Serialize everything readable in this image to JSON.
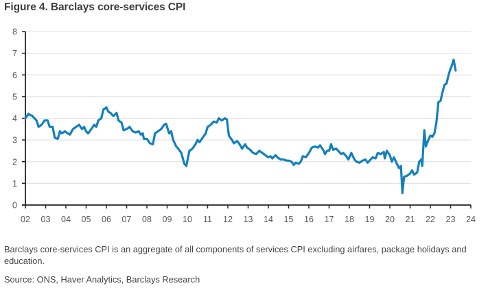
{
  "figure": {
    "title": "Figure 4. Barclays core-services CPI",
    "caption": "Barclays core-services CPI is an aggregate of all components of services CPI excluding airfares, package holidays and education.",
    "source": "Source: ONS, Haver Analytics, Barclays Research",
    "line_color": "#1380bd",
    "grid_color": "#e3e3e3",
    "axis_color": "#222222"
  },
  "chart_data": {
    "type": "line",
    "title": "Barclays core-services CPI",
    "xlabel": "",
    "ylabel": "",
    "xlim": [
      2002,
      2024
    ],
    "ylim": [
      0,
      8
    ],
    "grid": "horizontal",
    "legend": "none",
    "x_ticks": [
      2002,
      2003,
      2004,
      2005,
      2006,
      2007,
      2008,
      2009,
      2010,
      2011,
      2012,
      2013,
      2014,
      2015,
      2016,
      2017,
      2018,
      2019,
      2020,
      2021,
      2022,
      2023,
      2024
    ],
    "x_tick_labels": [
      "02",
      "03",
      "04",
      "05",
      "06",
      "07",
      "08",
      "09",
      "10",
      "11",
      "12",
      "13",
      "14",
      "15",
      "16",
      "17",
      "18",
      "19",
      "20",
      "21",
      "22",
      "23",
      "24"
    ],
    "y_ticks": [
      0,
      1,
      2,
      3,
      4,
      5,
      6,
      7,
      8
    ],
    "y_tick_labels": [
      "0",
      "1",
      "2",
      "3",
      "4",
      "5",
      "6",
      "7",
      "8"
    ],
    "series": [
      {
        "name": "Barclays core-services CPI",
        "x": [
          2002.0,
          2002.15,
          2002.35,
          2002.55,
          2002.65,
          2002.8,
          2002.95,
          2003.1,
          2003.2,
          2003.35,
          2003.45,
          2003.6,
          2003.7,
          2003.8,
          2003.95,
          2004.1,
          2004.2,
          2004.35,
          2004.5,
          2004.65,
          2004.8,
          2004.9,
          2005.0,
          2005.1,
          2005.25,
          2005.4,
          2005.5,
          2005.6,
          2005.75,
          2005.85,
          2006.0,
          2006.1,
          2006.2,
          2006.35,
          2006.5,
          2006.6,
          2006.75,
          2006.85,
          2007.0,
          2007.15,
          2007.3,
          2007.45,
          2007.6,
          2007.7,
          2007.8,
          2007.85,
          2008.0,
          2008.15,
          2008.3,
          2008.4,
          2008.55,
          2008.7,
          2008.85,
          2008.95,
          2009.1,
          2009.2,
          2009.3,
          2009.45,
          2009.55,
          2009.7,
          2009.85,
          2009.95,
          2010.1,
          2010.25,
          2010.4,
          2010.5,
          2010.6,
          2010.75,
          2010.9,
          2011.0,
          2011.15,
          2011.3,
          2011.45,
          2011.55,
          2011.7,
          2011.85,
          2011.95,
          2012.05,
          2012.2,
          2012.3,
          2012.45,
          2012.55,
          2012.7,
          2012.85,
          2012.95,
          2013.1,
          2013.25,
          2013.4,
          2013.55,
          2013.7,
          2013.85,
          2014.0,
          2014.1,
          2014.2,
          2014.35,
          2014.45,
          2014.6,
          2014.75,
          2014.9,
          2015.0,
          2015.15,
          2015.25,
          2015.35,
          2015.5,
          2015.6,
          2015.7,
          2015.85,
          2016.0,
          2016.15,
          2016.3,
          2016.45,
          2016.55,
          2016.7,
          2016.8,
          2016.9,
          2017.0,
          2017.1,
          2017.2,
          2017.35,
          2017.45,
          2017.6,
          2017.7,
          2017.85,
          2017.95,
          2018.1,
          2018.25,
          2018.35,
          2018.5,
          2018.65,
          2018.8,
          2018.9,
          2019.0,
          2019.15,
          2019.3,
          2019.4,
          2019.55,
          2019.7,
          2019.75,
          2019.85,
          2020.0,
          2020.1,
          2020.2,
          2020.35,
          2020.45,
          2020.55,
          2020.62,
          2020.7,
          2020.85,
          2021.0,
          2021.1,
          2021.2,
          2021.35,
          2021.45,
          2021.55,
          2021.6,
          2021.7,
          2021.78,
          2021.9,
          2022.0,
          2022.1,
          2022.2,
          2022.3,
          2022.4,
          2022.5,
          2022.6,
          2022.7,
          2022.8,
          2022.9,
          2023.0,
          2023.05,
          2023.15,
          2023.25
        ],
        "values": [
          4.0,
          4.2,
          4.1,
          3.9,
          3.6,
          3.7,
          3.9,
          3.9,
          3.6,
          3.6,
          3.1,
          3.05,
          3.4,
          3.3,
          3.4,
          3.3,
          3.25,
          3.5,
          3.6,
          3.7,
          3.5,
          3.6,
          3.4,
          3.3,
          3.5,
          3.7,
          3.6,
          3.9,
          4.0,
          4.4,
          4.5,
          4.3,
          4.25,
          4.1,
          4.25,
          3.9,
          3.8,
          3.45,
          3.5,
          3.6,
          3.4,
          3.35,
          3.4,
          3.25,
          3.3,
          3.05,
          3.05,
          2.85,
          2.8,
          3.3,
          3.4,
          3.5,
          3.7,
          3.75,
          3.3,
          3.4,
          3.0,
          2.7,
          2.6,
          2.4,
          1.9,
          1.8,
          2.5,
          2.6,
          2.8,
          3.0,
          2.9,
          3.1,
          3.3,
          3.6,
          3.7,
          3.85,
          3.8,
          4.0,
          3.9,
          4.0,
          3.95,
          3.2,
          3.0,
          2.85,
          2.95,
          2.85,
          2.6,
          2.8,
          2.65,
          2.55,
          2.4,
          2.35,
          2.5,
          2.4,
          2.3,
          2.2,
          2.25,
          2.15,
          2.3,
          2.2,
          2.1,
          2.1,
          2.05,
          2.05,
          2.0,
          1.85,
          1.95,
          1.9,
          2.0,
          2.25,
          2.2,
          2.4,
          2.65,
          2.7,
          2.65,
          2.75,
          2.55,
          2.35,
          2.5,
          2.5,
          2.8,
          2.55,
          2.6,
          2.5,
          2.35,
          2.4,
          2.25,
          2.1,
          2.4,
          2.1,
          2.0,
          1.95,
          2.05,
          2.1,
          1.95,
          2.05,
          2.2,
          2.15,
          2.4,
          2.35,
          2.45,
          2.15,
          2.5,
          2.3,
          2.0,
          2.2,
          1.9,
          1.7,
          1.8,
          0.55,
          1.3,
          1.35,
          1.45,
          1.6,
          1.4,
          1.5,
          2.0,
          2.1,
          1.8,
          3.45,
          2.7,
          3.0,
          3.2,
          3.15,
          3.3,
          3.8,
          4.75,
          4.8,
          5.2,
          5.55,
          5.6,
          6.0,
          6.3,
          6.4,
          6.7,
          6.2
        ]
      }
    ]
  }
}
